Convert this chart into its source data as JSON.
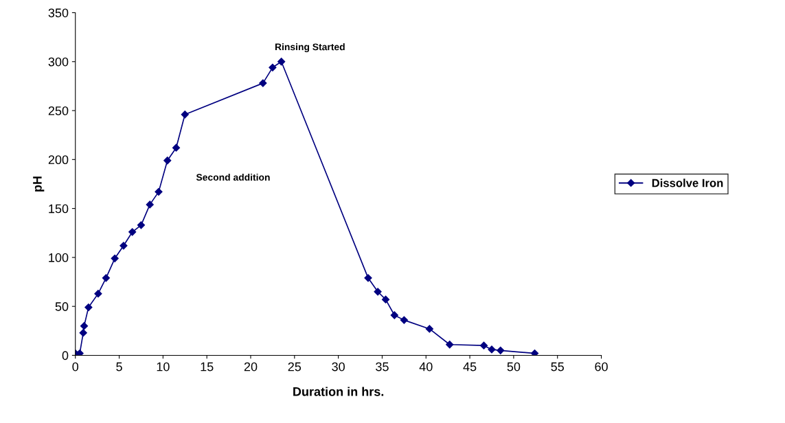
{
  "chart_data": {
    "type": "line",
    "xlabel": "Duration in hrs.",
    "ylabel": "pH",
    "x": [
      0,
      0.5,
      0.9,
      1,
      1.5,
      2.6,
      3.5,
      4.5,
      5.5,
      6.5,
      7.5,
      8.5,
      9.5,
      10.5,
      11.5,
      12.5,
      21.4,
      22.5,
      23.5,
      33.4,
      34.5,
      35.4,
      36.4,
      37.5,
      40.4,
      42.7,
      46.6,
      47.5,
      48.5,
      52.4
    ],
    "series": [
      {
        "name": "Dissolve Iron",
        "color": "#000080",
        "values": [
          2,
          2,
          23,
          30,
          49,
          63,
          79,
          99,
          112,
          126,
          133,
          154,
          167,
          199,
          212,
          246,
          278,
          294,
          300,
          79,
          65,
          57,
          41,
          36,
          27,
          11,
          10,
          6,
          5,
          2
        ]
      }
    ],
    "xlim": [
      0,
      60
    ],
    "xticks": [
      0,
      5,
      10,
      15,
      20,
      25,
      30,
      35,
      40,
      45,
      50,
      55,
      60
    ],
    "ylim": [
      0,
      350
    ],
    "yticks": [
      0,
      50,
      100,
      150,
      200,
      250,
      300,
      350
    ],
    "annotations": [
      {
        "text": "Rinsing Started",
        "x": 23.5,
        "y": 300
      },
      "Second addition"
    ],
    "marker": "diamond",
    "line_style": "solid",
    "grid": false,
    "legend": "right"
  }
}
